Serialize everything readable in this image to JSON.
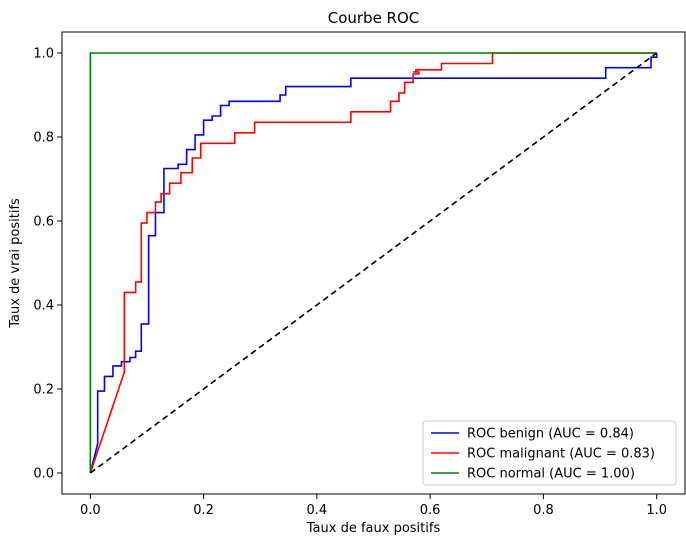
{
  "chart_data": {
    "type": "line",
    "title": "Courbe ROC",
    "xlabel": "Taux de faux positifs",
    "ylabel": "Taux de vrai positifs",
    "xlim": [
      -0.05,
      1.05
    ],
    "ylim": [
      -0.05,
      1.05
    ],
    "xticks": [
      0.0,
      0.2,
      0.4,
      0.6,
      0.8,
      1.0
    ],
    "yticks": [
      0.0,
      0.2,
      0.4,
      0.6,
      0.8,
      1.0
    ],
    "tick_labels": [
      "0.0",
      "0.2",
      "0.4",
      "0.6",
      "0.8",
      "1.0"
    ],
    "grid": false,
    "legend_position": "bottom-right",
    "series": [
      {
        "name": "ROC benign (AUC = 0.84)",
        "color": "#0000ff",
        "style": "step",
        "points": [
          [
            0.0,
            0.0
          ],
          [
            0.013,
            0.07
          ],
          [
            0.013,
            0.195
          ],
          [
            0.025,
            0.195
          ],
          [
            0.025,
            0.23
          ],
          [
            0.04,
            0.23
          ],
          [
            0.04,
            0.255
          ],
          [
            0.055,
            0.255
          ],
          [
            0.055,
            0.265
          ],
          [
            0.07,
            0.265
          ],
          [
            0.07,
            0.275
          ],
          [
            0.08,
            0.275
          ],
          [
            0.08,
            0.29
          ],
          [
            0.09,
            0.29
          ],
          [
            0.09,
            0.355
          ],
          [
            0.103,
            0.355
          ],
          [
            0.103,
            0.565
          ],
          [
            0.115,
            0.565
          ],
          [
            0.115,
            0.62
          ],
          [
            0.13,
            0.62
          ],
          [
            0.13,
            0.725
          ],
          [
            0.155,
            0.725
          ],
          [
            0.155,
            0.735
          ],
          [
            0.17,
            0.735
          ],
          [
            0.17,
            0.77
          ],
          [
            0.185,
            0.77
          ],
          [
            0.185,
            0.805
          ],
          [
            0.2,
            0.805
          ],
          [
            0.2,
            0.84
          ],
          [
            0.215,
            0.84
          ],
          [
            0.215,
            0.85
          ],
          [
            0.23,
            0.85
          ],
          [
            0.23,
            0.875
          ],
          [
            0.245,
            0.875
          ],
          [
            0.245,
            0.885
          ],
          [
            0.335,
            0.885
          ],
          [
            0.335,
            0.9
          ],
          [
            0.345,
            0.9
          ],
          [
            0.345,
            0.92
          ],
          [
            0.46,
            0.92
          ],
          [
            0.46,
            0.94
          ],
          [
            0.91,
            0.94
          ],
          [
            0.91,
            0.965
          ],
          [
            0.99,
            0.965
          ],
          [
            0.99,
            0.99
          ],
          [
            1.0,
            0.99
          ],
          [
            1.0,
            1.0
          ]
        ]
      },
      {
        "name": "ROC malignant (AUC = 0.83)",
        "color": "#ff0000",
        "style": "line",
        "points": [
          [
            0.0,
            0.0
          ],
          [
            0.06,
            0.24
          ],
          [
            0.06,
            0.43
          ],
          [
            0.08,
            0.43
          ],
          [
            0.08,
            0.455
          ],
          [
            0.09,
            0.455
          ],
          [
            0.09,
            0.595
          ],
          [
            0.1,
            0.595
          ],
          [
            0.1,
            0.62
          ],
          [
            0.115,
            0.62
          ],
          [
            0.115,
            0.645
          ],
          [
            0.125,
            0.645
          ],
          [
            0.125,
            0.665
          ],
          [
            0.14,
            0.665
          ],
          [
            0.14,
            0.69
          ],
          [
            0.16,
            0.69
          ],
          [
            0.16,
            0.715
          ],
          [
            0.18,
            0.715
          ],
          [
            0.18,
            0.75
          ],
          [
            0.195,
            0.75
          ],
          [
            0.195,
            0.785
          ],
          [
            0.255,
            0.785
          ],
          [
            0.255,
            0.81
          ],
          [
            0.29,
            0.81
          ],
          [
            0.29,
            0.835
          ],
          [
            0.46,
            0.835
          ],
          [
            0.46,
            0.86
          ],
          [
            0.53,
            0.86
          ],
          [
            0.53,
            0.885
          ],
          [
            0.545,
            0.885
          ],
          [
            0.545,
            0.905
          ],
          [
            0.555,
            0.905
          ],
          [
            0.555,
            0.93
          ],
          [
            0.57,
            0.93
          ],
          [
            0.57,
            0.95
          ],
          [
            0.58,
            0.95
          ],
          [
            0.58,
            0.955
          ],
          [
            0.57,
            0.955
          ],
          [
            0.575,
            0.955
          ],
          [
            0.575,
            0.96
          ],
          [
            0.62,
            0.96
          ],
          [
            0.62,
            0.975
          ],
          [
            0.71,
            0.975
          ],
          [
            0.71,
            1.0
          ],
          [
            1.0,
            1.0
          ]
        ]
      },
      {
        "name": "ROC normal (AUC = 1.00)",
        "color": "#008000",
        "style": "line",
        "points": [
          [
            0.0,
            0.0
          ],
          [
            0.0,
            1.0
          ],
          [
            1.0,
            1.0
          ]
        ]
      },
      {
        "name": "",
        "color": "#000000",
        "style": "dashed",
        "points": [
          [
            0.0,
            0.0
          ],
          [
            1.0,
            1.0
          ]
        ]
      }
    ]
  }
}
